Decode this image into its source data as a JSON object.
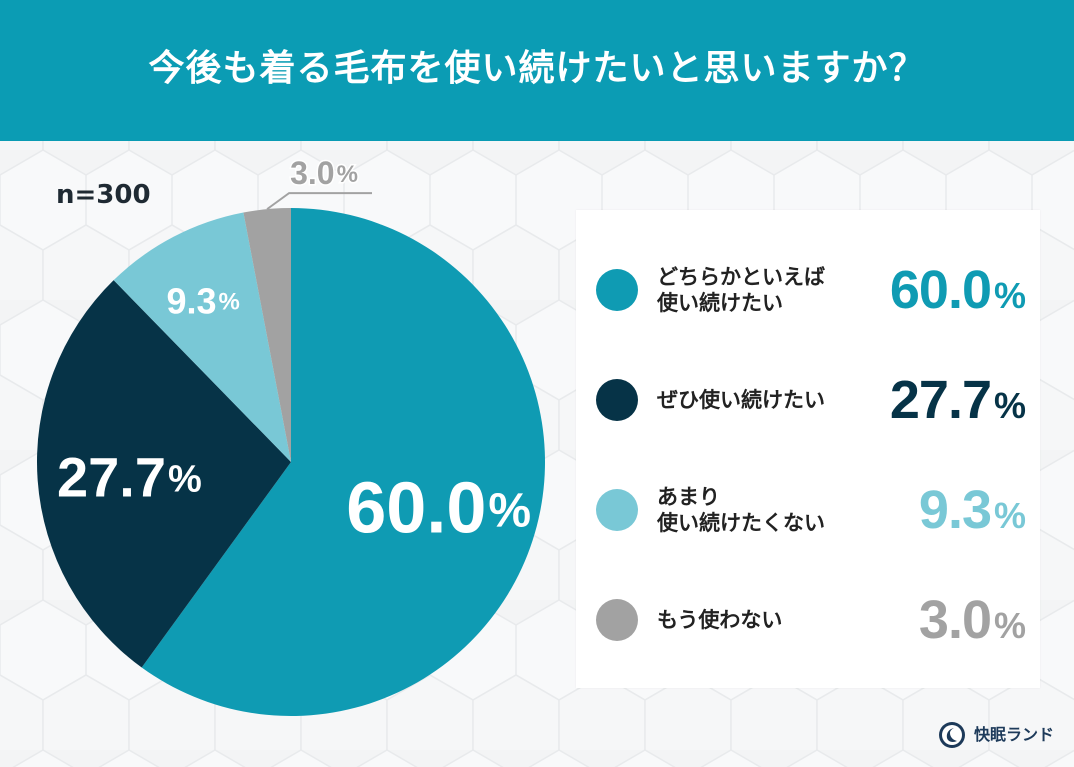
{
  "header": {
    "title": "今後も着る毛布を使い続けたいと思いますか？"
  },
  "sample_size_text": "n=300",
  "chart_data": {
    "type": "pie",
    "title": "今後も着る毛布を使い続けたいと思いますか？",
    "categories": [
      "どちらかといえば\n使い続けたい",
      "ぜひ使い続けたい",
      "あまり\n使い続けたくない",
      "もう使わない"
    ],
    "values": [
      60.0,
      27.7,
      9.3,
      3.0
    ],
    "value_text": [
      "60.0",
      "27.7",
      "9.3",
      "3.0"
    ],
    "unit": "%",
    "colors": [
      "#0f9bb3",
      "#063347",
      "#79c8d6",
      "#a2a2a2"
    ],
    "legend_placement": "right"
  },
  "brand": {
    "name": "快眠ランド",
    "logo_icon": "moon-logo-icon"
  }
}
